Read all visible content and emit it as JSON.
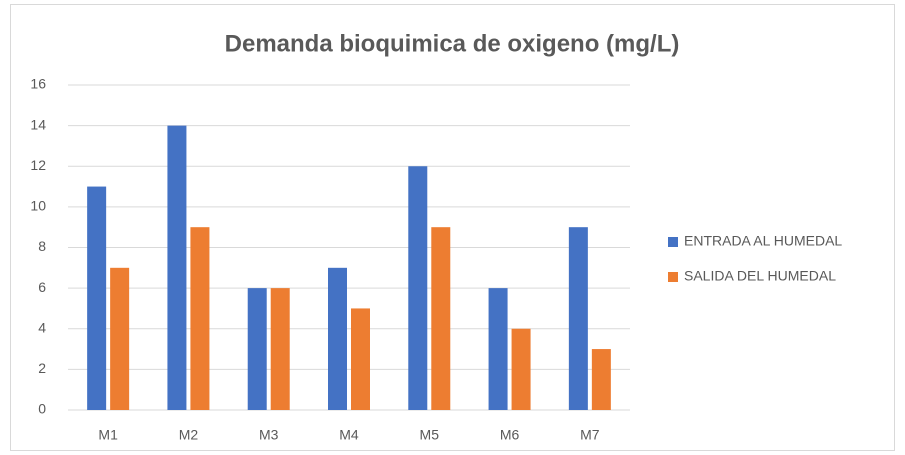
{
  "chart_data": {
    "type": "bar",
    "title": "Demanda bioquimica de oxigeno (mg/L)",
    "categories": [
      "M1",
      "M2",
      "M3",
      "M4",
      "M5",
      "M6",
      "M7"
    ],
    "series": [
      {
        "name": "ENTRADA AL HUMEDAL",
        "color": "#4472c4",
        "values": [
          11,
          14,
          6,
          7,
          12,
          6,
          9
        ]
      },
      {
        "name": "SALIDA DEL HUMEDAL",
        "color": "#ed7d31",
        "values": [
          7,
          9,
          6,
          5,
          9,
          4,
          3
        ]
      }
    ],
    "ylim": [
      0,
      16
    ],
    "yticks": [
      0,
      2,
      4,
      6,
      8,
      10,
      12,
      14,
      16
    ],
    "grid": true,
    "legend": "right"
  }
}
